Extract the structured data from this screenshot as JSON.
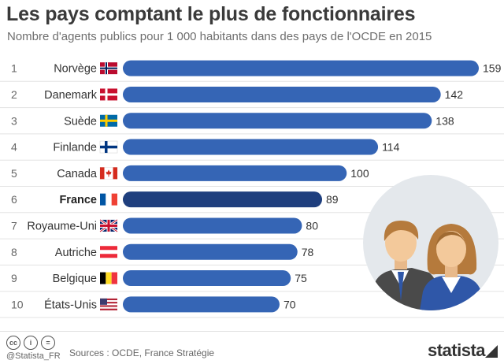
{
  "header": {
    "title": "Les pays comptant le plus de fonctionnaires",
    "subtitle": "Nombre d'agents publics pour 1 000 habitants dans des pays de l'OCDE en 2015"
  },
  "chart_data": {
    "type": "bar",
    "orientation": "horizontal",
    "title": "Les pays comptant le plus de fonctionnaires",
    "subtitle": "Nombre d'agents publics pour 1 000 habitants dans des pays de l'OCDE en 2015",
    "xlabel": "",
    "ylabel": "",
    "grid": false,
    "ranks": [
      "1",
      "2",
      "3",
      "4",
      "5",
      "6",
      "7",
      "8",
      "9",
      "10"
    ],
    "categories": [
      "Norvège",
      "Danemark",
      "Suède",
      "Finlande",
      "Canada",
      "France",
      "Royaume-Uni",
      "Autriche",
      "Belgique",
      "États-Unis"
    ],
    "values": [
      159,
      142,
      138,
      114,
      100,
      89,
      80,
      78,
      75,
      70
    ],
    "highlight": "France",
    "flags": [
      "flag-norway",
      "flag-denmark",
      "flag-sweden",
      "flag-finland",
      "flag-canada",
      "flag-france",
      "flag-uk",
      "flag-austria",
      "flag-belgium",
      "flag-usa"
    ],
    "xlim": [
      0,
      159
    ],
    "colors": {
      "bar": "#3565b5",
      "highlight": "#1f3f7e"
    }
  },
  "footer": {
    "handle": "@Statista_FR",
    "sources": "Sources : OCDE, France Stratégie",
    "brand": "statista",
    "license_icons": [
      "cc-icon",
      "by-icon",
      "nd-icon"
    ]
  },
  "illustration": {
    "icon": "civil-servants-icon"
  }
}
